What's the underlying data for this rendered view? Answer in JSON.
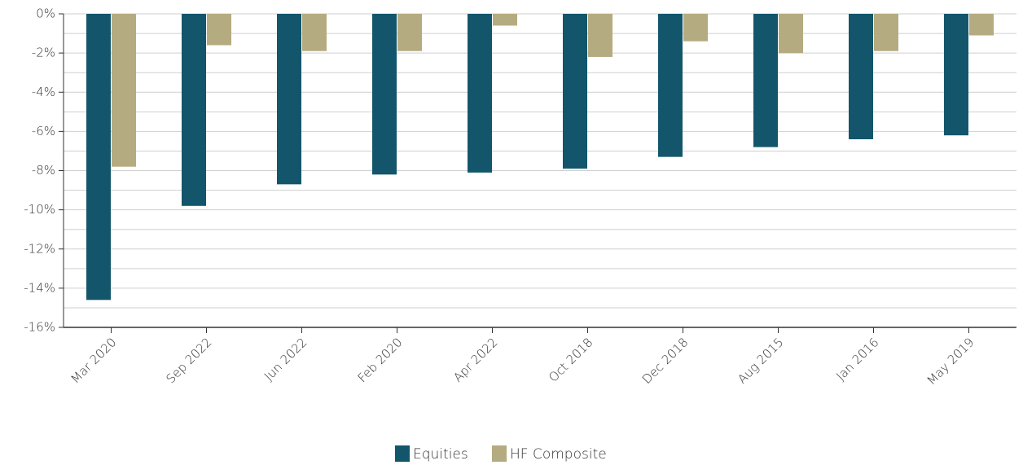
{
  "chart_data": {
    "type": "bar",
    "categories": [
      "Mar 2020",
      "Sep 2022",
      "Jun 2022",
      "Feb 2020",
      "Apr 2022",
      "Oct 2018",
      "Dec 2018",
      "Aug 2015",
      "Jan 2016",
      "May 2019"
    ],
    "series": [
      {
        "name": "Equities",
        "color": "#13566b",
        "values": [
          -14.6,
          -9.8,
          -8.7,
          -8.2,
          -8.1,
          -7.9,
          -7.3,
          -6.8,
          -6.4,
          -6.2
        ]
      },
      {
        "name": "HF Composite",
        "color": "#b5ab80",
        "values": [
          -7.8,
          -1.6,
          -1.9,
          -1.9,
          -0.6,
          -2.2,
          -1.4,
          -2.0,
          -1.9,
          -1.1
        ]
      }
    ],
    "ylim": [
      -16,
      0
    ],
    "yticks": [
      {
        "value": 0,
        "label": "0%"
      },
      {
        "value": -2,
        "label": "-2%"
      },
      {
        "value": -4,
        "label": "-4%"
      },
      {
        "value": -6,
        "label": "-6%"
      },
      {
        "value": -8,
        "label": "-8%"
      },
      {
        "value": -10,
        "label": "-10%"
      },
      {
        "value": -12,
        "label": "-12%"
      },
      {
        "value": -14,
        "label": "-14%"
      },
      {
        "value": -16,
        "label": "-16%"
      }
    ],
    "minor_yticks": [
      -1,
      -3,
      -5,
      -7,
      -9,
      -11,
      -13,
      -15
    ],
    "grid": true,
    "legend": "bottom"
  }
}
